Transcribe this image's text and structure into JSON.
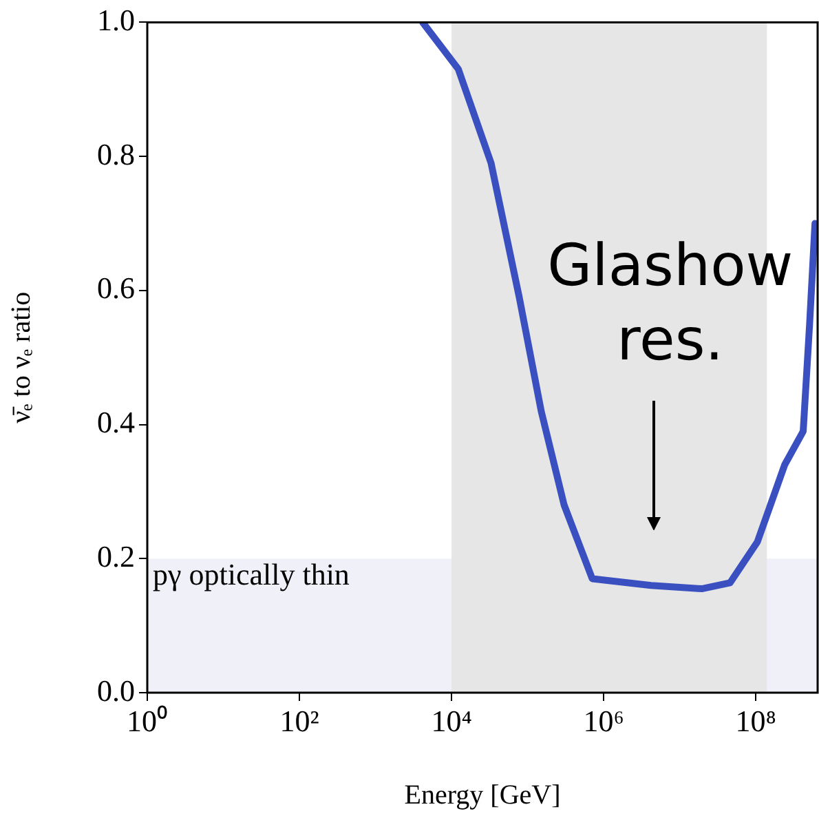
{
  "chart_data": {
    "type": "line",
    "xlabel": "Energy [GeV]",
    "ylabel": "ν̄ₑ to νₑ ratio",
    "log": "x",
    "xlim": [
      1,
      650000000
    ],
    "ylim": [
      0,
      1.0
    ],
    "xticks": [
      {
        "value": 1,
        "label": "10⁰"
      },
      {
        "value": 100,
        "label": "10²"
      },
      {
        "value": 10000,
        "label": "10⁴"
      },
      {
        "value": 1000000,
        "label": "10⁶"
      },
      {
        "value": 100000000,
        "label": "10⁸"
      }
    ],
    "yticks": [
      {
        "value": 0,
        "label": "0.0"
      },
      0.2,
      0.4,
      0.6,
      0.8,
      {
        "value": 1,
        "label": "1.0"
      }
    ],
    "grid": false,
    "legend": false,
    "marker": "none",
    "line_style": "solid",
    "series": [
      {
        "color": "#3a50c0",
        "x": [
          4170,
          12300,
          33100,
          77600,
          151000,
          302000,
          708000,
          4200000,
          19500000,
          46000000,
          105000000,
          240000000,
          420000000,
          510000000,
          600000000
        ],
        "values": [
          1.0,
          0.93,
          0.79,
          0.59,
          0.42,
          0.28,
          0.17,
          0.16,
          0.155,
          0.164,
          0.225,
          0.34,
          0.39,
          0.55,
          0.7
        ]
      }
    ],
    "bands": [
      {
        "axis": "y",
        "from": 0,
        "to": 0.2,
        "label": "pγ optically thin",
        "color": "#eff0f8"
      },
      {
        "axis": "x",
        "from": 10000,
        "to": 140000000,
        "color": "#e6e6e6"
      }
    ],
    "annotations": [
      "Glashow res."
    ]
  }
}
